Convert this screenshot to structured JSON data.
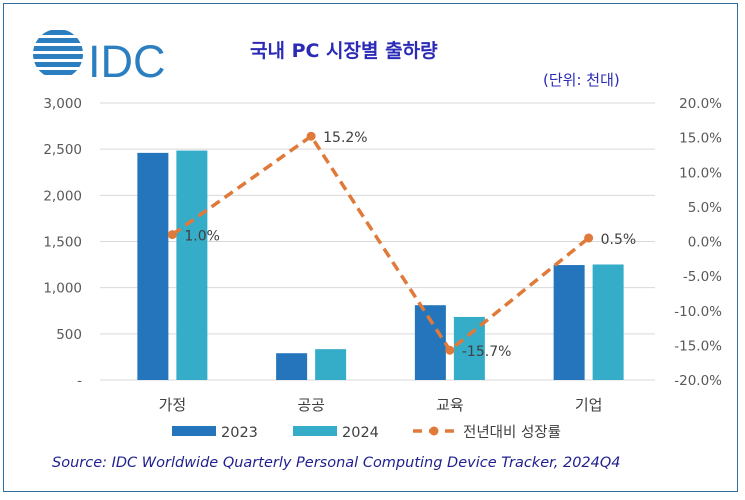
{
  "logo_text": "IDC",
  "header": {
    "title": "국내 PC 시장별 출하량",
    "unit": "(단위: 천대)"
  },
  "source": "Source: IDC Worldwide Quarterly Personal Computing Device Tracker, 2024Q4",
  "colors": {
    "2023": "#2475bb",
    "2024": "#35acc8",
    "growth": "#e07a3a",
    "title": "#2b2bb8",
    "logo": "#2b7fc0"
  },
  "chart_data": {
    "type": "bar+line",
    "title": "국내 PC 시장별 출하량",
    "categories": [
      "가정",
      "공공",
      "교육",
      "기업"
    ],
    "series": [
      {
        "name": "2023",
        "type": "bar",
        "axis": "left",
        "values": [
          2460,
          290,
          810,
          1245
        ]
      },
      {
        "name": "2024",
        "type": "bar",
        "axis": "left",
        "values": [
          2485,
          334,
          683,
          1251
        ]
      },
      {
        "name": "전년대비 성장률",
        "type": "line",
        "axis": "right",
        "style": "dashed",
        "values": [
          1.0,
          15.2,
          -15.7,
          0.5
        ],
        "labels": [
          "1.0%",
          "15.2%",
          "-15.7%",
          "0.5%"
        ]
      }
    ],
    "ylim": [
      0,
      3000
    ],
    "yticks": [
      "-",
      "500",
      "1,000",
      "1,500",
      "2,000",
      "2,500",
      "3,000"
    ],
    "y2lim": [
      -20,
      20
    ],
    "y2ticks": [
      "-20.0%",
      "-15.0%",
      "-10.0%",
      "-5.0%",
      "0.0%",
      "5.0%",
      "10.0%",
      "15.0%",
      "20.0%"
    ],
    "grid": true,
    "legend": "bottom"
  }
}
